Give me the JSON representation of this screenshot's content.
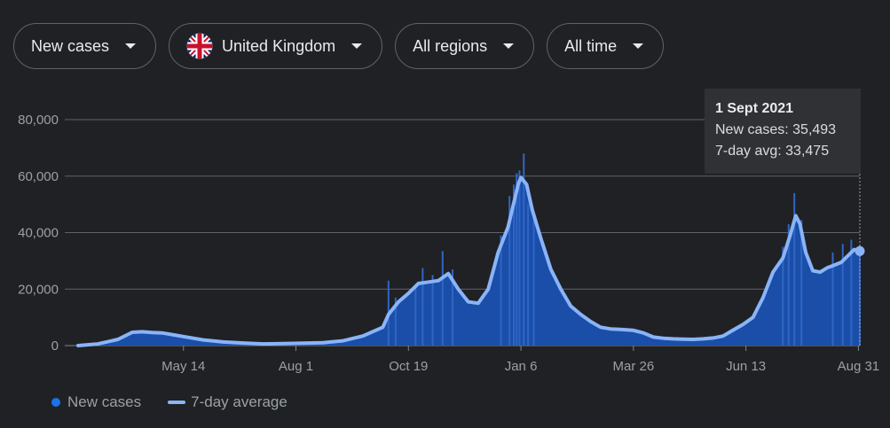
{
  "filters": [
    {
      "label": "New cases",
      "flag": false
    },
    {
      "label": "United Kingdom",
      "flag": true
    },
    {
      "label": "All regions",
      "flag": false
    },
    {
      "label": "All time",
      "flag": false
    }
  ],
  "tooltip": {
    "date": "1 Sept 2021",
    "new_cases": "New cases: 35,493",
    "avg": "7-day avg: 33,475"
  },
  "legend": {
    "new_cases": "New cases",
    "avg": "7-day average"
  },
  "colors": {
    "bar": "#1a4ea8",
    "bar_top": "#2f66c6",
    "avg_line": "#8ab4f8",
    "grid": "#5f6368",
    "text": "#9aa0a6"
  },
  "chart_data": {
    "type": "area",
    "ylim": [
      0,
      80000
    ],
    "yticks": [
      0,
      20000,
      40000,
      60000,
      80000
    ],
    "ytick_labels": [
      "0",
      "20,000",
      "40,000",
      "60,000",
      "80,000"
    ],
    "xtick_labels": [
      "May 14",
      "Aug 1",
      "Oct 19",
      "Jan 6",
      "Mar 26",
      "Jun 13",
      "Aug 31"
    ],
    "xtick_dates": [
      "2020-05-14",
      "2020-08-01",
      "2020-10-19",
      "2021-01-06",
      "2021-03-26",
      "2021-06-13",
      "2021-08-31"
    ],
    "date_range": [
      "2020-03-01",
      "2021-09-01"
    ],
    "series": [
      {
        "name": "7-day average",
        "points": [
          [
            "2020-03-01",
            0
          ],
          [
            "2020-03-15",
            600
          ],
          [
            "2020-03-29",
            2200
          ],
          [
            "2020-04-08",
            4700
          ],
          [
            "2020-04-15",
            4900
          ],
          [
            "2020-04-22",
            4600
          ],
          [
            "2020-04-29",
            4500
          ],
          [
            "2020-05-07",
            3800
          ],
          [
            "2020-05-14",
            3200
          ],
          [
            "2020-05-28",
            2000
          ],
          [
            "2020-06-11",
            1300
          ],
          [
            "2020-06-25",
            900
          ],
          [
            "2020-07-09",
            600
          ],
          [
            "2020-07-23",
            700
          ],
          [
            "2020-08-06",
            850
          ],
          [
            "2020-08-20",
            1050
          ],
          [
            "2020-09-03",
            1700
          ],
          [
            "2020-09-17",
            3400
          ],
          [
            "2020-10-01",
            6500
          ],
          [
            "2020-10-05",
            11000
          ],
          [
            "2020-10-12",
            15500
          ],
          [
            "2020-10-19",
            18500
          ],
          [
            "2020-10-26",
            22000
          ],
          [
            "2020-11-02",
            22500
          ],
          [
            "2020-11-09",
            23000
          ],
          [
            "2020-11-16",
            25500
          ],
          [
            "2020-11-23",
            20000
          ],
          [
            "2020-11-30",
            15500
          ],
          [
            "2020-12-07",
            15000
          ],
          [
            "2020-12-14",
            20000
          ],
          [
            "2020-12-21",
            33000
          ],
          [
            "2020-12-28",
            42000
          ],
          [
            "2021-01-04",
            57000
          ],
          [
            "2021-01-06",
            59500
          ],
          [
            "2021-01-10",
            57000
          ],
          [
            "2021-01-14",
            48000
          ],
          [
            "2021-01-20",
            38000
          ],
          [
            "2021-01-27",
            27000
          ],
          [
            "2021-02-03",
            20000
          ],
          [
            "2021-02-10",
            14000
          ],
          [
            "2021-02-17",
            11000
          ],
          [
            "2021-02-24",
            8500
          ],
          [
            "2021-03-03",
            6500
          ],
          [
            "2021-03-10",
            5900
          ],
          [
            "2021-03-17",
            5700
          ],
          [
            "2021-03-26",
            5400
          ],
          [
            "2021-04-02",
            4500
          ],
          [
            "2021-04-09",
            3000
          ],
          [
            "2021-04-16",
            2600
          ],
          [
            "2021-04-23",
            2400
          ],
          [
            "2021-04-30",
            2300
          ],
          [
            "2021-05-07",
            2200
          ],
          [
            "2021-05-14",
            2400
          ],
          [
            "2021-05-21",
            2700
          ],
          [
            "2021-05-28",
            3400
          ],
          [
            "2021-06-04",
            5500
          ],
          [
            "2021-06-11",
            7500
          ],
          [
            "2021-06-18",
            10000
          ],
          [
            "2021-06-25",
            17000
          ],
          [
            "2021-07-02",
            26000
          ],
          [
            "2021-07-09",
            31000
          ],
          [
            "2021-07-14",
            39000
          ],
          [
            "2021-07-18",
            46000
          ],
          [
            "2021-07-21",
            43000
          ],
          [
            "2021-07-25",
            33000
          ],
          [
            "2021-07-30",
            26500
          ],
          [
            "2021-08-04",
            26000
          ],
          [
            "2021-08-09",
            27500
          ],
          [
            "2021-08-14",
            28500
          ],
          [
            "2021-08-19",
            29500
          ],
          [
            "2021-08-24",
            32000
          ],
          [
            "2021-08-28",
            34000
          ],
          [
            "2021-09-01",
            33475
          ]
        ]
      },
      {
        "name": "New cases",
        "spikes": [
          [
            "2020-10-05",
            23000
          ],
          [
            "2020-10-10",
            17000
          ],
          [
            "2020-10-24",
            21500
          ],
          [
            "2020-10-29",
            27500
          ],
          [
            "2020-11-05",
            25000
          ],
          [
            "2020-11-12",
            33500
          ],
          [
            "2020-11-19",
            27000
          ],
          [
            "2020-12-23",
            39000
          ],
          [
            "2020-12-29",
            53000
          ],
          [
            "2021-01-01",
            57000
          ],
          [
            "2021-01-03",
            61000
          ],
          [
            "2021-01-05",
            62000
          ],
          [
            "2021-01-08",
            68000
          ],
          [
            "2021-01-11",
            50000
          ],
          [
            "2021-01-15",
            47500
          ],
          [
            "2021-07-09",
            35000
          ],
          [
            "2021-07-13",
            43000
          ],
          [
            "2021-07-17",
            54000
          ],
          [
            "2021-07-22",
            44500
          ],
          [
            "2021-08-13",
            33000
          ],
          [
            "2021-08-20",
            36000
          ],
          [
            "2021-08-26",
            37500
          ],
          [
            "2021-09-01",
            35493
          ]
        ]
      }
    ],
    "highlight": {
      "date": "2021-09-01",
      "value": 33475
    }
  }
}
